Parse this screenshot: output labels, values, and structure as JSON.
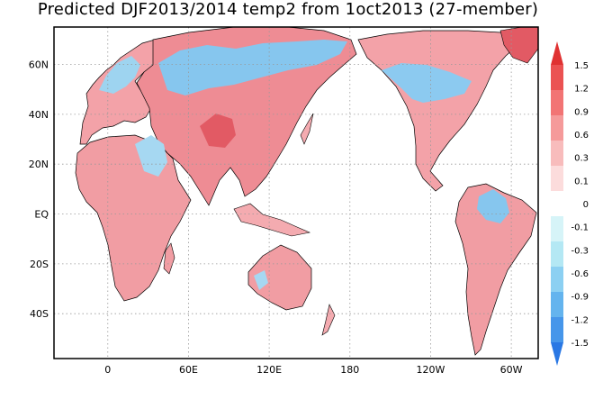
{
  "title": "Predicted DJF2013/2014 temp2 from 1oct2013 (27-member)",
  "map": {
    "lon_range": [
      -40,
      320
    ],
    "lat_range": [
      -58,
      75
    ],
    "lat_ticks": [
      {
        "value": 60,
        "label": "60N"
      },
      {
        "value": 40,
        "label": "40N"
      },
      {
        "value": 20,
        "label": "20N"
      },
      {
        "value": 0,
        "label": "EQ"
      },
      {
        "value": -20,
        "label": "20S"
      },
      {
        "value": -40,
        "label": "40S"
      }
    ],
    "lon_ticks": [
      {
        "value": 0,
        "label": "0"
      },
      {
        "value": 60,
        "label": "60E"
      },
      {
        "value": 120,
        "label": "120E"
      },
      {
        "value": 180,
        "label": "180"
      },
      {
        "value": 240,
        "label": "120W"
      },
      {
        "value": 300,
        "label": "60W"
      }
    ],
    "grid": "dotted"
  },
  "colorbar": {
    "levels": [
      "1.5",
      "1.2",
      "0.9",
      "0.6",
      "0.3",
      "0.1",
      "0",
      "-0.1",
      "-0.3",
      "-0.6",
      "-0.9",
      "-1.2",
      "-1.5"
    ],
    "colors": [
      "#e03232",
      "#eb5252",
      "#f27474",
      "#f59a9a",
      "#f8bcbc",
      "#fcdcdc",
      "#ffffff",
      "#d6f4f8",
      "#b4e8f4",
      "#8cd0f2",
      "#64b4ee",
      "#4696ea",
      "#2a78e4"
    ]
  }
}
